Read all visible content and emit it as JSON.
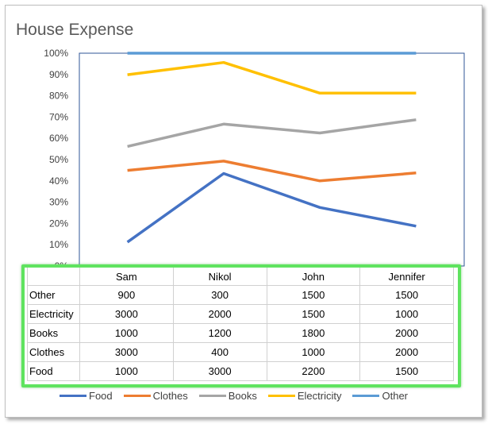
{
  "chart_data": {
    "type": "line",
    "stacking": "percent",
    "title": "House Expense",
    "categories": [
      "Sam",
      "Nikol",
      "John",
      "Jennifer"
    ],
    "series": [
      {
        "name": "Food",
        "values": [
          1000,
          3000,
          2200,
          1500
        ],
        "color": "#4472C4"
      },
      {
        "name": "Clothes",
        "values": [
          3000,
          400,
          1000,
          2000
        ],
        "color": "#ED7D31"
      },
      {
        "name": "Books",
        "values": [
          1000,
          1200,
          1800,
          2000
        ],
        "color": "#A5A5A5"
      },
      {
        "name": "Electricity",
        "values": [
          3000,
          2000,
          1500,
          1000
        ],
        "color": "#FFC000"
      },
      {
        "name": "Other",
        "values": [
          900,
          300,
          1500,
          1500
        ],
        "color": "#5B9BD5"
      }
    ],
    "table_rows": [
      {
        "label": "Other",
        "values": [
          "900",
          "300",
          "1500",
          "1500"
        ]
      },
      {
        "label": "Electricity",
        "values": [
          "3000",
          "2000",
          "1500",
          "1000"
        ]
      },
      {
        "label": "Books",
        "values": [
          "1000",
          "1200",
          "1800",
          "2000"
        ]
      },
      {
        "label": "Clothes",
        "values": [
          "3000",
          "400",
          "1000",
          "2000"
        ]
      },
      {
        "label": "Food",
        "values": [
          "1000",
          "3000",
          "2200",
          "1500"
        ]
      }
    ],
    "y_ticks": [
      "0%",
      "10%",
      "20%",
      "30%",
      "40%",
      "50%",
      "60%",
      "70%",
      "80%",
      "90%",
      "100%"
    ],
    "ylim": [
      0,
      1
    ],
    "legend_position": "bottom",
    "highlight_color": "#5FE35F"
  }
}
